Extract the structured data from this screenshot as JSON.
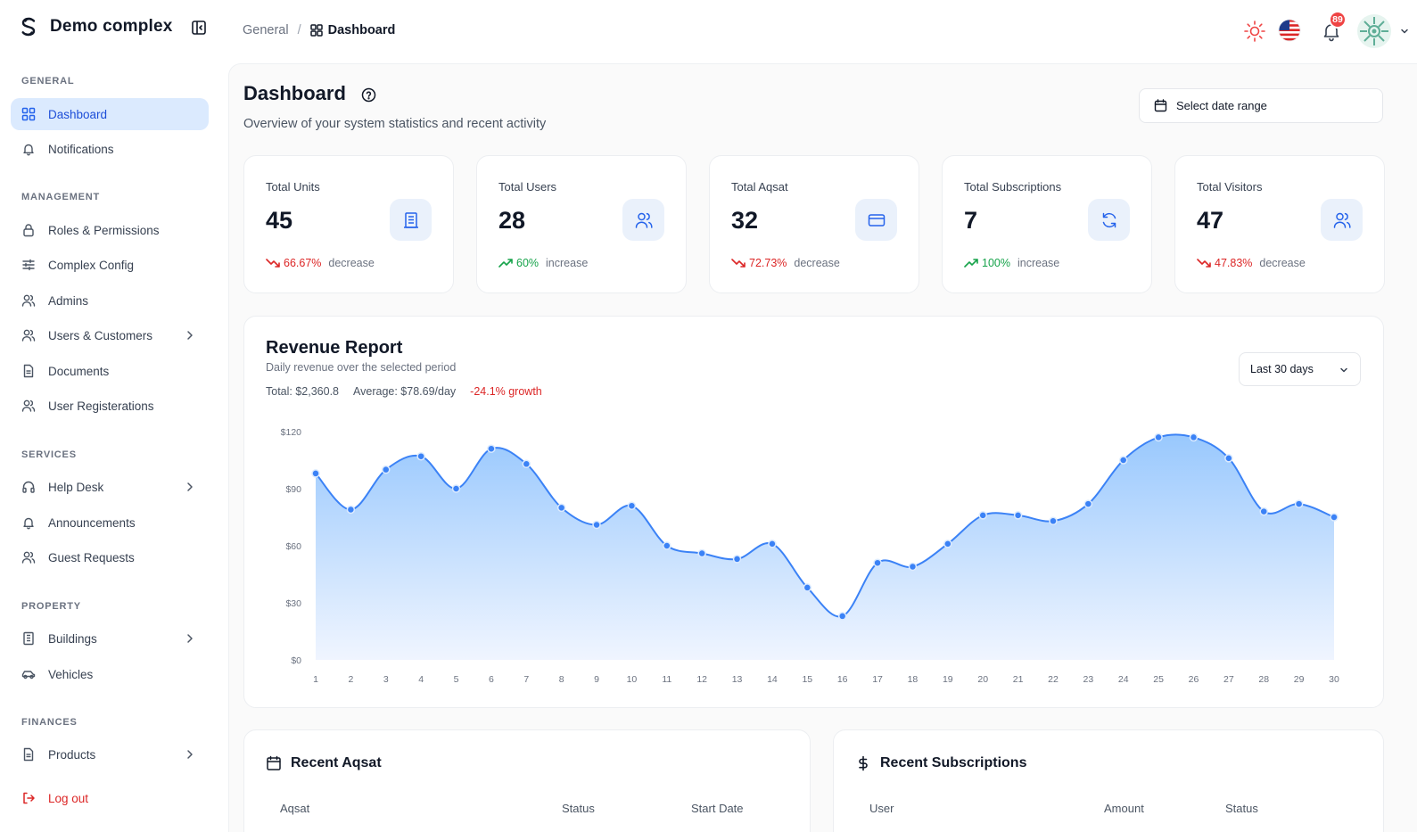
{
  "brand": {
    "name": "Demo complex"
  },
  "breadcrumb": {
    "root": "General",
    "current": "Dashboard"
  },
  "header": {
    "notification_count": "89"
  },
  "sidebar": {
    "sections": {
      "general": "GENERAL",
      "management": "MANAGEMENT",
      "services": "SERVICES",
      "property": "PROPERTY",
      "finances": "FINANCES"
    },
    "items": {
      "dashboard": "Dashboard",
      "notifications": "Notifications",
      "roles": "Roles & Permissions",
      "complex_config": "Complex Config",
      "admins": "Admins",
      "users_customers": "Users & Customers",
      "documents": "Documents",
      "user_registrations": "User Registerations",
      "help_desk": "Help Desk",
      "announcements": "Announcements",
      "guest_requests": "Guest Requests",
      "buildings": "Buildings",
      "vehicles": "Vehicles",
      "products": "Products",
      "logout": "Log out"
    }
  },
  "page": {
    "title": "Dashboard",
    "subtitle": "Overview of your system statistics and recent activity",
    "date_range_placeholder": "Select date range"
  },
  "stats": [
    {
      "label": "Total Units",
      "value": "45",
      "change": "66.67%",
      "direction": "decrease",
      "icon": "building-icon"
    },
    {
      "label": "Total Users",
      "value": "28",
      "change": "60%",
      "direction": "increase",
      "icon": "users-icon"
    },
    {
      "label": "Total Aqsat",
      "value": "32",
      "change": "72.73%",
      "direction": "decrease",
      "icon": "credit-card-icon"
    },
    {
      "label": "Total Subscriptions",
      "value": "7",
      "change": "100%",
      "direction": "increase",
      "icon": "refresh-icon"
    },
    {
      "label": "Total Visitors",
      "value": "47",
      "change": "47.83%",
      "direction": "decrease",
      "icon": "users-icon"
    }
  ],
  "revenue": {
    "title": "Revenue Report",
    "subtitle": "Daily revenue over the selected period",
    "total": "Total: $2,360.8",
    "average": "Average: $78.69/day",
    "growth": "-24.1% growth",
    "range": "Last 30 days"
  },
  "chart_data": {
    "type": "area",
    "x": [
      1,
      2,
      3,
      4,
      5,
      6,
      7,
      8,
      9,
      10,
      11,
      12,
      13,
      14,
      15,
      16,
      17,
      18,
      19,
      20,
      21,
      22,
      23,
      24,
      25,
      26,
      27,
      28,
      29,
      30
    ],
    "values": [
      98,
      79,
      100,
      107,
      90,
      111,
      103,
      80,
      71,
      81,
      60,
      56,
      53,
      61,
      38,
      23,
      51,
      49,
      61,
      76,
      76,
      73,
      82,
      105,
      117,
      117,
      106,
      78,
      82,
      75
    ],
    "yticks": [
      "$0",
      "$30",
      "$60",
      "$90",
      "$120"
    ],
    "ylim": [
      0,
      120
    ],
    "colors": {
      "line": "#3b82f6",
      "fill_top": "#93c5fd",
      "fill_bottom": "#eef4ff"
    }
  },
  "recent_aqsat": {
    "title": "Recent Aqsat",
    "columns": [
      "Aqsat",
      "Status",
      "Start Date"
    ]
  },
  "recent_subscriptions": {
    "title": "Recent Subscriptions",
    "columns": [
      "User",
      "Amount",
      "Status"
    ]
  }
}
